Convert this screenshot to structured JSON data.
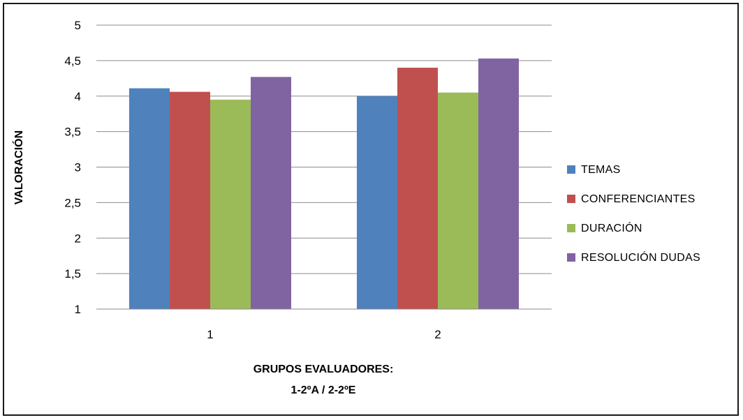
{
  "chart_data": {
    "type": "bar",
    "categories": [
      "1",
      "2"
    ],
    "series": [
      {
        "name": "TEMAS",
        "values": [
          4.11,
          4.0
        ],
        "color": "#4F81BD"
      },
      {
        "name": "CONFERENCIANTES",
        "values": [
          4.06,
          4.4
        ],
        "color": "#C0504D"
      },
      {
        "name": "DURACIÓN",
        "values": [
          3.95,
          4.05
        ],
        "color": "#9BBB59"
      },
      {
        "name": "RESOLUCIÓN DUDAS",
        "values": [
          4.27,
          4.53
        ],
        "color": "#8064A2"
      }
    ],
    "ylabel": "VALORACIÓN",
    "xlabel_lines": [
      "GRUPOS EVALUADORES:",
      "1-2ºA / 2-2ºE"
    ],
    "ylim": [
      1,
      5
    ],
    "yticks": [
      1,
      1.5,
      2,
      2.5,
      3,
      3.5,
      4,
      4.5,
      5
    ],
    "ytick_labels": [
      "1",
      "1,5",
      "2",
      "2,5",
      "3",
      "3,5",
      "4",
      "4,5",
      "5"
    ],
    "grid": true,
    "legend_position": "right"
  }
}
